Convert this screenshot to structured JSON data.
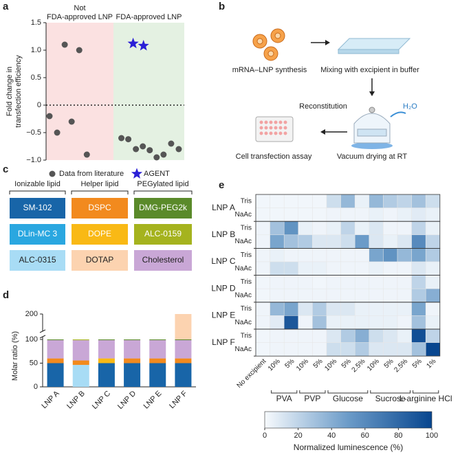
{
  "panel_labels": [
    "a",
    "b",
    "c",
    "d",
    "e"
  ],
  "chart_data": [
    {
      "type": "scatter",
      "ylabel": [
        "Fold change in",
        "transfection efficiency"
      ],
      "xlim": [
        0,
        20
      ],
      "ylim": [
        -1,
        1.5
      ],
      "yticks": [
        {
          "value": -1,
          "label": "−1.0"
        },
        {
          "value": -0.5,
          "label": "−0.5"
        },
        0,
        0.5,
        {
          "value": 1,
          "label": "1.0"
        },
        1.5
      ],
      "reference_line": 0,
      "regions": [
        {
          "label": [
            "Not",
            "FDA-approved LNP"
          ],
          "xrange": [
            0,
            9.75
          ],
          "color": "#fbe1e1"
        },
        {
          "label": [
            "FDA-approved LNP"
          ],
          "xrange": [
            9.75,
            20
          ],
          "color": "#e4f1e2"
        }
      ],
      "series": [
        {
          "name": "Data from literature",
          "marker": "circle",
          "color": "#555555",
          "x": [
            0.5,
            1.6,
            2.7,
            3.7,
            4.8,
            5.9,
            10.9,
            11.9,
            13,
            14,
            15,
            16,
            17,
            18.1,
            19.2
          ],
          "y": [
            -0.2,
            -0.5,
            1.1,
            -0.3,
            1.0,
            -0.9,
            -0.6,
            -0.62,
            -0.8,
            -0.75,
            -0.82,
            -0.95,
            -0.9,
            -0.7,
            -0.8
          ]
        },
        {
          "name": "AGENT",
          "marker": "star",
          "color": "#2a1fd6",
          "x": [
            12.6,
            14.1
          ],
          "y": [
            1.12,
            1.08
          ]
        }
      ]
    },
    {
      "type": "bar",
      "stacked": true,
      "ylabel": "Molar ratio (%)",
      "categories": [
        "LNP A",
        "LNP B",
        "LNP C",
        "LNP D",
        "LNP E",
        "LNP F"
      ],
      "ylim": [
        0,
        200
      ],
      "yticks": [
        0,
        50,
        100,
        200
      ],
      "axis_break": 100,
      "series": [
        {
          "values": [
            50,
            46.3,
            50,
            50,
            50,
            50
          ],
          "colors": [
            "#1865a8",
            "#a8dcf5",
            "#1865a8",
            "#1865a8",
            "#1865a8",
            "#1865a8"
          ]
        },
        {
          "values": [
            10,
            9.4,
            10,
            10,
            10,
            10
          ],
          "colors": [
            "#f28a1e",
            "#f28a1e",
            "#f9b915",
            "#f28a1e",
            "#f28a1e",
            "#f28a1e"
          ]
        },
        {
          "values": [
            38.5,
            42.7,
            38.5,
            38.5,
            38.5,
            38.5
          ],
          "colors": [
            "#c9a7d6",
            "#c9a7d6",
            "#c9a7d6",
            "#c9a7d6",
            "#c9a7d6",
            "#c9a7d6"
          ]
        },
        {
          "values": [
            1.5,
            1.6,
            1.5,
            1.5,
            1.5,
            1.5
          ],
          "colors": [
            "#5a8a2a",
            "#a5b31e",
            "#5a8a2a",
            "#5a8a2a",
            "#5a8a2a",
            "#5a8a2a"
          ]
        },
        {
          "values": [
            null,
            null,
            null,
            null,
            null,
            100
          ],
          "colors": [
            "#fcd3b0",
            "#fcd3b0",
            "#fcd3b0",
            "#fcd3b0",
            "#fcd3b0",
            "#fcd3b0"
          ]
        }
      ]
    },
    {
      "type": "heatmap",
      "row_groups": [
        "LNP A",
        "LNP B",
        "LNP C",
        "LNP D",
        "LNP E",
        "LNP F"
      ],
      "buffers": [
        "Tris",
        "NaAc"
      ],
      "no_excipient_label": "No excipient",
      "column_groups": [
        {
          "name": "PVA",
          "columns": [
            "10%",
            "5%"
          ]
        },
        {
          "name": "PVP",
          "columns": [
            "10%",
            "5%"
          ]
        },
        {
          "name": "Glucose",
          "columns": [
            "10%",
            "5%",
            "2.5%"
          ]
        },
        {
          "name": "Sucrose",
          "columns": [
            "10%",
            "5%",
            "2.5%"
          ]
        },
        {
          "name": "L-arginine HCl",
          "columns": [
            "5%",
            "1%"
          ]
        }
      ],
      "values": [
        [
          2,
          2,
          2,
          2,
          2,
          15,
          35,
          5,
          35,
          25,
          20,
          30,
          15
        ],
        [
          2,
          2,
          2,
          2,
          2,
          3,
          3,
          3,
          5,
          3,
          5,
          8,
          5
        ],
        [
          3,
          30,
          55,
          5,
          3,
          5,
          20,
          5,
          10,
          3,
          3,
          20,
          5
        ],
        [
          3,
          45,
          30,
          25,
          10,
          10,
          15,
          50,
          10,
          5,
          10,
          60,
          20
        ],
        [
          3,
          5,
          3,
          3,
          3,
          3,
          3,
          3,
          45,
          55,
          35,
          45,
          25
        ],
        [
          3,
          15,
          15,
          5,
          5,
          3,
          3,
          3,
          5,
          3,
          3,
          10,
          5
        ],
        [
          2,
          3,
          3,
          3,
          2,
          3,
          3,
          3,
          3,
          3,
          3,
          20,
          5
        ],
        [
          2,
          3,
          3,
          3,
          3,
          3,
          3,
          3,
          3,
          3,
          3,
          25,
          40
        ],
        [
          3,
          35,
          45,
          10,
          25,
          10,
          10,
          5,
          5,
          5,
          5,
          45,
          3
        ],
        [
          3,
          8,
          90,
          3,
          30,
          5,
          5,
          5,
          5,
          5,
          3,
          30,
          5
        ],
        [
          2,
          3,
          3,
          3,
          3,
          10,
          25,
          40,
          15,
          10,
          5,
          95,
          20
        ],
        [
          2,
          3,
          3,
          3,
          3,
          15,
          15,
          25,
          10,
          10,
          10,
          30,
          100
        ]
      ],
      "colorbar": {
        "label": "Normalized luminescence (%)",
        "xlim": [
          0,
          100
        ],
        "xticks": [
          0,
          20,
          40,
          60,
          80,
          100
        ],
        "colors": [
          "#f7fafd",
          "#6b9bc8",
          "#08468f"
        ]
      }
    }
  ],
  "workflow": {
    "synthesis": "mRNA–LNP synthesis",
    "mixing": "Mixing with excipient in buffer",
    "reconstitution": "Reconstitution",
    "water": "H₂O",
    "drying": "Vacuum drying at RT",
    "assay": "Cell transfection assay"
  },
  "lipids": [
    {
      "header": "Ionizable lipid",
      "items": [
        {
          "name": "SM-102",
          "color": "#1865a8",
          "text_color": "#ffffff"
        },
        {
          "name": "DLin-MC 3",
          "color": "#2aa7e0",
          "text_color": "#ffffff"
        },
        {
          "name": "ALC-0315",
          "color": "#a8dcf5",
          "text_color": "#222222"
        }
      ]
    },
    {
      "header": "Helper lipid",
      "items": [
        {
          "name": "DSPC",
          "color": "#f28a1e",
          "text_color": "#ffffff"
        },
        {
          "name": "DOPE",
          "color": "#f9b915",
          "text_color": "#ffffff"
        },
        {
          "name": "DOTAP",
          "color": "#fcd3b0",
          "text_color": "#222222"
        }
      ]
    },
    {
      "header": "PEGylated lipid",
      "items": [
        {
          "name": "DMG-PEG2k",
          "color": "#5a8a2a",
          "text_color": "#ffffff"
        },
        {
          "name": "ALC-0159",
          "color": "#a5b31e",
          "text_color": "#ffffff"
        },
        {
          "name": "Cholesterol",
          "color": "#c9a7d6",
          "text_color": "#222222"
        }
      ]
    }
  ]
}
